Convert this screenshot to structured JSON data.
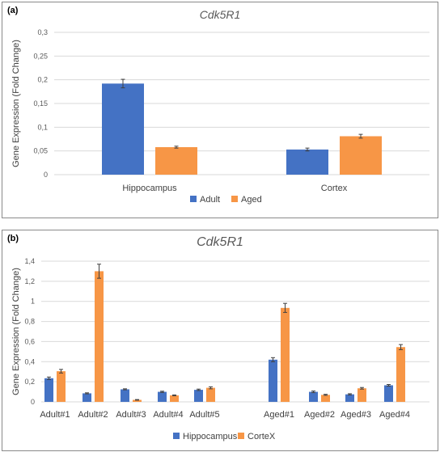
{
  "chart_data": [
    {
      "panel_label": "(a)",
      "type": "bar",
      "title": "Cdk5R1",
      "ylabel": "Gene Expression (Fold Change)",
      "xlabel": "",
      "categories": [
        "Hippocampus",
        "Cortex"
      ],
      "series": [
        {
          "name": "Adult",
          "color": "#4472C4",
          "values": [
            0.192,
            0.053
          ],
          "errors": [
            0.009,
            0.003
          ]
        },
        {
          "name": "Aged",
          "color": "#F79646",
          "values": [
            0.058,
            0.081
          ],
          "errors": [
            0.002,
            0.004
          ]
        }
      ],
      "ylim": [
        0,
        0.3
      ],
      "yticks": [
        0,
        0.05,
        0.1,
        0.15,
        0.2,
        0.25,
        0.3
      ],
      "ytick_labels": [
        "0",
        "0,05",
        "0,1",
        "0,15",
        "0,2",
        "0,25",
        "0,3"
      ],
      "grid": true,
      "legend": "bottom"
    },
    {
      "panel_label": "(b)",
      "type": "bar",
      "title": "Cdk5R1",
      "ylabel": "Gene Expression (Fold Change)",
      "xlabel": "",
      "categories": [
        "Adult#1",
        "Adult#2",
        "Adult#3",
        "Adult#4",
        "Adult#5",
        "Aged#1",
        "Aged#2",
        "Aged#3",
        "Aged#4"
      ],
      "series": [
        {
          "name": "Hippocampus",
          "color": "#4472C4",
          "values": [
            0.235,
            0.085,
            0.125,
            0.1,
            0.12,
            0.42,
            0.1,
            0.075,
            0.165
          ],
          "errors": [
            0.012,
            0.005,
            0.005,
            0.006,
            0.007,
            0.02,
            0.008,
            0.006,
            0.008
          ]
        },
        {
          "name": "CorteX",
          "color": "#F79646",
          "values": [
            0.305,
            1.3,
            0.02,
            0.065,
            0.14,
            0.935,
            0.07,
            0.135,
            0.545
          ],
          "errors": [
            0.018,
            0.07,
            0.003,
            0.004,
            0.01,
            0.045,
            0.005,
            0.008,
            0.025
          ]
        }
      ],
      "ylim": [
        0,
        1.4
      ],
      "yticks": [
        0,
        0.2,
        0.4,
        0.6,
        0.8,
        1,
        1.2,
        1.4
      ],
      "ytick_labels": [
        "0",
        "0,2",
        "0,4",
        "0,6",
        "0,8",
        "1",
        "1,2",
        "1,4"
      ],
      "grid": true,
      "legend": "bottom"
    }
  ]
}
